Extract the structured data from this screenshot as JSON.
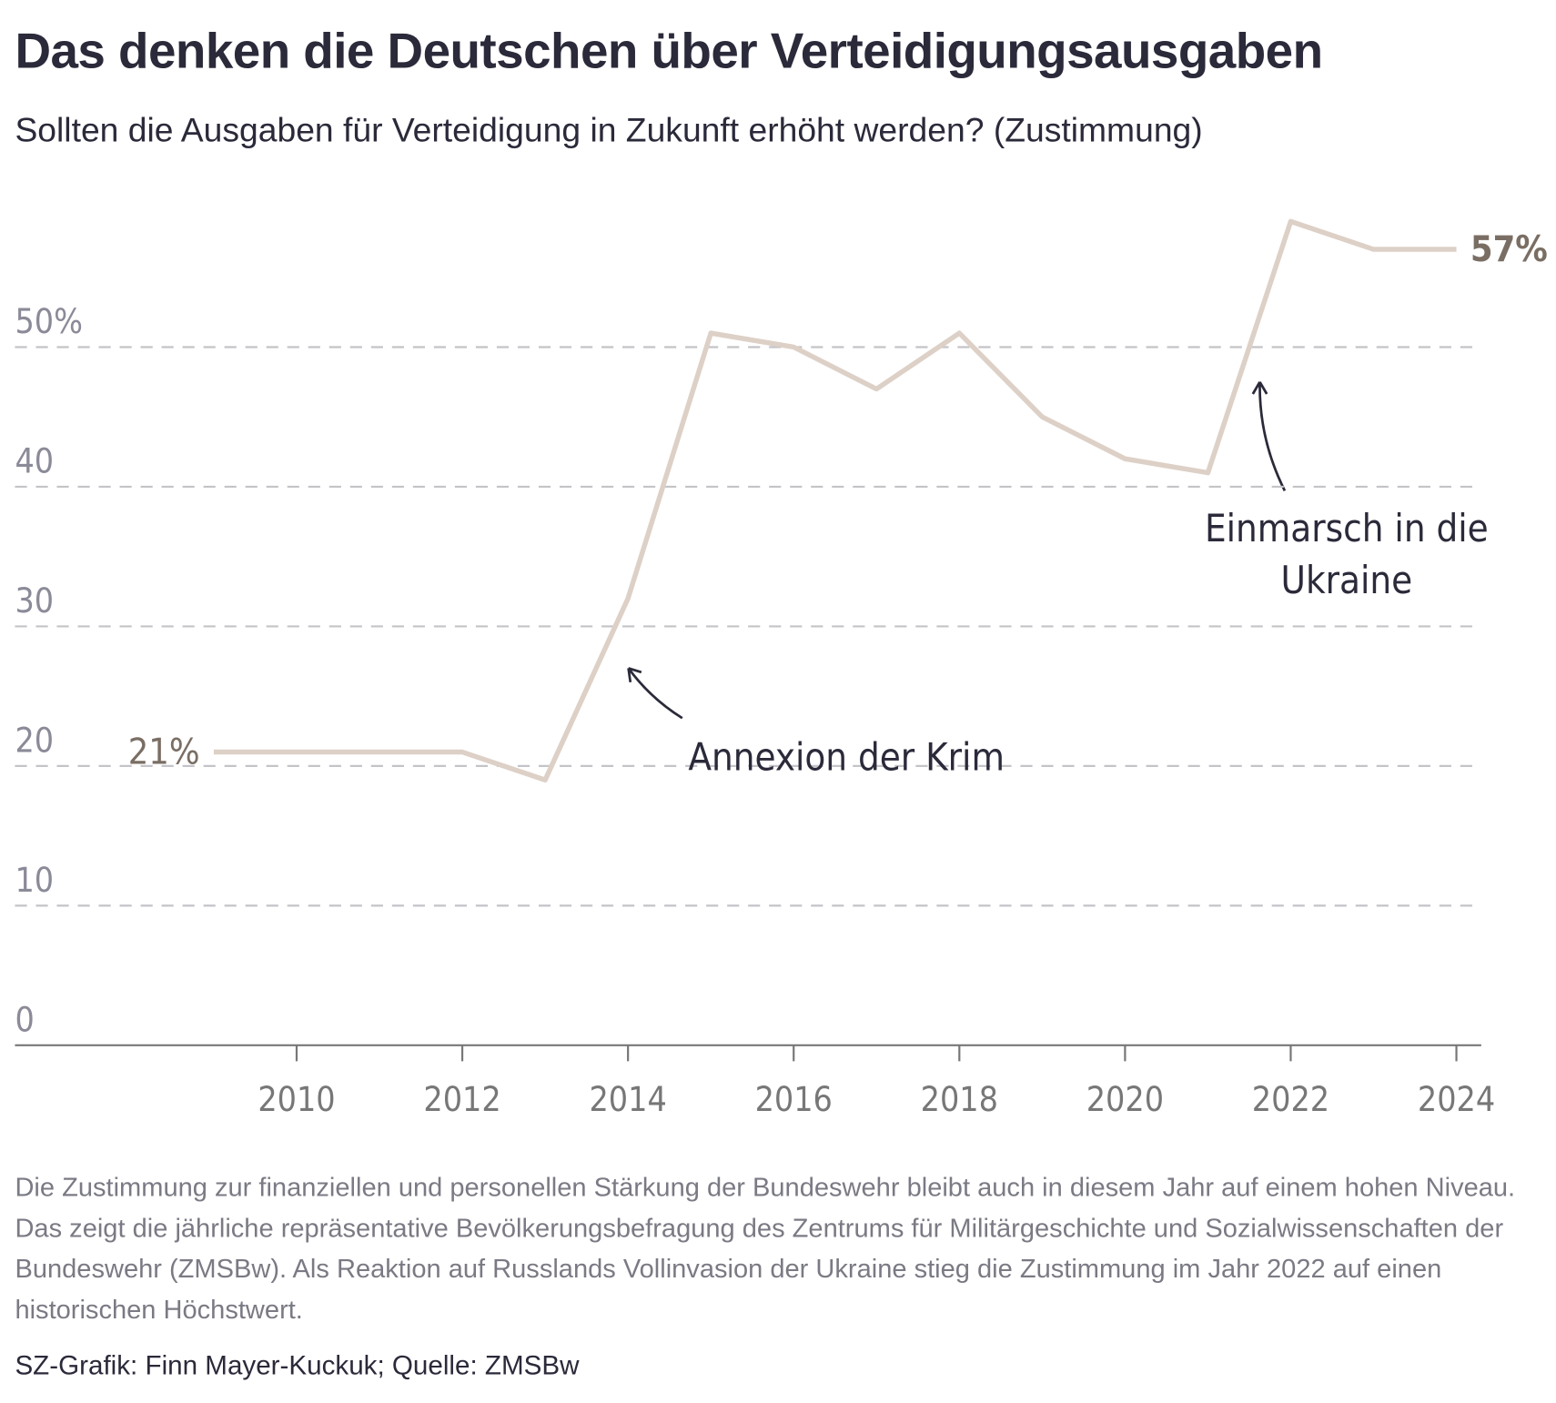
{
  "header": {
    "title": "Das denken die Deutschen über Verteidigungsausgaben",
    "subtitle": "Sollten die Ausgaben für Verteidigung in Zukunft erhöht werden? (Zustimmung)"
  },
  "chart_data": {
    "type": "line",
    "x": [
      2009,
      2010,
      2011,
      2012,
      2013,
      2014,
      2015,
      2016,
      2017,
      2018,
      2019,
      2020,
      2021,
      2022,
      2023,
      2024
    ],
    "series": [
      {
        "color": "#ddd0c6",
        "values": [
          21,
          21,
          21,
          21,
          19,
          32,
          51,
          50,
          47,
          51,
          45,
          42,
          41,
          59,
          57,
          57
        ],
        "value_labels": [
          "21%",
          null,
          null,
          null,
          null,
          null,
          null,
          null,
          null,
          null,
          null,
          null,
          null,
          null,
          null,
          "57%"
        ]
      }
    ],
    "xlim": [
      2006.6,
      2024.3
    ],
    "xticks": [
      2010,
      2012,
      2014,
      2016,
      2018,
      2020,
      2022,
      2024
    ],
    "ylim": [
      0,
      60
    ],
    "yticks": [
      0,
      10,
      20,
      30,
      {
        "value": 40,
        "label": "40"
      },
      {
        "value": 50,
        "label": "50%"
      }
    ],
    "grid": true,
    "annotations": [
      {
        "lines": [
          "Annexion der Krim"
        ]
      },
      {
        "lines": [
          "Einmarsch in die",
          "Ukraine"
        ]
      }
    ]
  },
  "footer": {
    "note": "Die Zustimmung zur finanziellen und personellen Stärkung der Bundeswehr bleibt auch in diesem Jahr auf einem hohen Niveau. Das zeigt die jährliche repräsentative Bevölkerungsbefragung des Zentrums für Militärgeschichte und Sozialwissenschaften der Bundeswehr (ZMSBw). Als Reaktion auf Russlands Vollinvasion der Ukraine stieg die Zustimmung im Jahr 2022 auf einen historischen Höchstwert.",
    "source": "SZ-Grafik: Finn Mayer-Kuckuk; Quelle: ZMSBw"
  }
}
